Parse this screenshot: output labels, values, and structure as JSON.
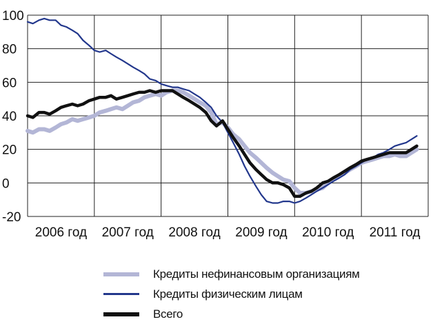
{
  "chart_data": {
    "type": "line",
    "title": "",
    "xlabel": "",
    "ylabel": "",
    "ylim": [
      -20,
      100
    ],
    "yticks": [
      "100",
      "80",
      "60",
      "40",
      "20",
      "0",
      "-20"
    ],
    "xlim": [
      2006,
      2012
    ],
    "categories": [
      "2006 год",
      "2007 год",
      "2008 год",
      "2009 год",
      "2010 год",
      "2011 год"
    ],
    "grid": true,
    "legend_position": "bottom",
    "series": [
      {
        "name": "Кредиты нефинансовым организациям",
        "color": "#b3b6d6",
        "x": [
          2006.0,
          2006.08,
          2006.17,
          2006.25,
          2006.33,
          2006.42,
          2006.5,
          2006.58,
          2006.67,
          2006.75,
          2006.83,
          2006.92,
          2007.0,
          2007.08,
          2007.17,
          2007.25,
          2007.33,
          2007.42,
          2007.5,
          2007.58,
          2007.67,
          2007.75,
          2007.83,
          2007.92,
          2008.0,
          2008.08,
          2008.17,
          2008.25,
          2008.33,
          2008.42,
          2008.5,
          2008.58,
          2008.67,
          2008.75,
          2008.83,
          2008.92,
          2009.0,
          2009.08,
          2009.17,
          2009.25,
          2009.33,
          2009.42,
          2009.5,
          2009.58,
          2009.67,
          2009.75,
          2009.83,
          2009.92,
          2010.0,
          2010.08,
          2010.17,
          2010.25,
          2010.33,
          2010.42,
          2010.5,
          2010.58,
          2010.67,
          2010.75,
          2010.83,
          2010.92,
          2011.0,
          2011.08,
          2011.17,
          2011.25,
          2011.33,
          2011.42,
          2011.5,
          2011.58,
          2011.67,
          2011.75,
          2011.83
        ],
        "values": [
          31,
          30,
          32,
          32,
          31,
          33,
          35,
          36,
          38,
          37,
          38,
          39,
          40,
          42,
          43,
          44,
          45,
          44,
          46,
          48,
          49,
          51,
          52,
          53,
          52,
          54,
          55,
          55,
          54,
          52,
          50,
          48,
          46,
          42,
          35,
          36,
          33,
          29,
          26,
          22,
          18,
          15,
          12,
          9,
          6,
          4,
          2,
          1,
          -3,
          -6,
          -6,
          -5,
          -4,
          -3,
          0,
          2,
          4,
          6,
          8,
          10,
          12,
          13,
          14,
          15,
          16,
          16,
          17,
          16,
          16,
          18,
          20
        ]
      },
      {
        "name": "Кредиты физическим лицам",
        "color": "#22378c",
        "x": [
          2006.0,
          2006.08,
          2006.17,
          2006.25,
          2006.33,
          2006.42,
          2006.5,
          2006.58,
          2006.67,
          2006.75,
          2006.83,
          2006.92,
          2007.0,
          2007.08,
          2007.17,
          2007.25,
          2007.33,
          2007.42,
          2007.5,
          2007.58,
          2007.67,
          2007.75,
          2007.83,
          2007.92,
          2008.0,
          2008.08,
          2008.17,
          2008.25,
          2008.33,
          2008.42,
          2008.5,
          2008.58,
          2008.67,
          2008.75,
          2008.83,
          2008.92,
          2009.0,
          2009.08,
          2009.17,
          2009.25,
          2009.33,
          2009.42,
          2009.5,
          2009.58,
          2009.67,
          2009.75,
          2009.83,
          2009.92,
          2010.0,
          2010.08,
          2010.17,
          2010.25,
          2010.33,
          2010.42,
          2010.5,
          2010.58,
          2010.67,
          2010.75,
          2010.83,
          2010.92,
          2011.0,
          2011.08,
          2011.17,
          2011.25,
          2011.33,
          2011.42,
          2011.5,
          2011.58,
          2011.67,
          2011.75,
          2011.83
        ],
        "values": [
          96,
          95,
          97,
          98,
          97,
          97,
          94,
          93,
          91,
          89,
          85,
          82,
          79,
          78,
          79,
          77,
          75,
          73,
          71,
          69,
          67,
          65,
          62,
          61,
          59,
          58,
          57,
          57,
          56,
          55,
          53,
          51,
          48,
          45,
          40,
          36,
          30,
          24,
          17,
          10,
          4,
          -2,
          -7,
          -11,
          -12,
          -12,
          -11,
          -11,
          -12,
          -11,
          -9,
          -7,
          -5,
          -3,
          -1,
          1,
          3,
          5,
          8,
          10,
          12,
          14,
          15,
          17,
          18,
          20,
          22,
          23,
          24,
          26,
          28
        ]
      },
      {
        "name": "Всего",
        "color": "#111111",
        "x": [
          2006.0,
          2006.08,
          2006.17,
          2006.25,
          2006.33,
          2006.42,
          2006.5,
          2006.58,
          2006.67,
          2006.75,
          2006.83,
          2006.92,
          2007.0,
          2007.08,
          2007.17,
          2007.25,
          2007.33,
          2007.42,
          2007.5,
          2007.58,
          2007.67,
          2007.75,
          2007.83,
          2007.92,
          2008.0,
          2008.08,
          2008.17,
          2008.25,
          2008.33,
          2008.42,
          2008.5,
          2008.58,
          2008.67,
          2008.75,
          2008.83,
          2008.92,
          2009.0,
          2009.08,
          2009.17,
          2009.25,
          2009.33,
          2009.42,
          2009.5,
          2009.58,
          2009.67,
          2009.75,
          2009.83,
          2009.92,
          2010.0,
          2010.08,
          2010.17,
          2010.25,
          2010.33,
          2010.42,
          2010.5,
          2010.58,
          2010.67,
          2010.75,
          2010.83,
          2010.92,
          2011.0,
          2011.08,
          2011.17,
          2011.25,
          2011.33,
          2011.42,
          2011.5,
          2011.58,
          2011.67,
          2011.75,
          2011.83
        ],
        "values": [
          40,
          39,
          42,
          42,
          41,
          43,
          45,
          46,
          47,
          46,
          47,
          49,
          50,
          51,
          51,
          52,
          50,
          51,
          52,
          53,
          54,
          54,
          55,
          54,
          55,
          55,
          55,
          53,
          51,
          49,
          47,
          45,
          42,
          37,
          34,
          37,
          32,
          27,
          22,
          17,
          12,
          8,
          5,
          2,
          0,
          0,
          -1,
          -3,
          -8,
          -8,
          -6,
          -5,
          -3,
          0,
          1,
          3,
          5,
          7,
          9,
          11,
          13,
          14,
          15,
          16,
          17,
          18,
          18,
          18,
          18,
          20,
          22
        ]
      }
    ]
  }
}
